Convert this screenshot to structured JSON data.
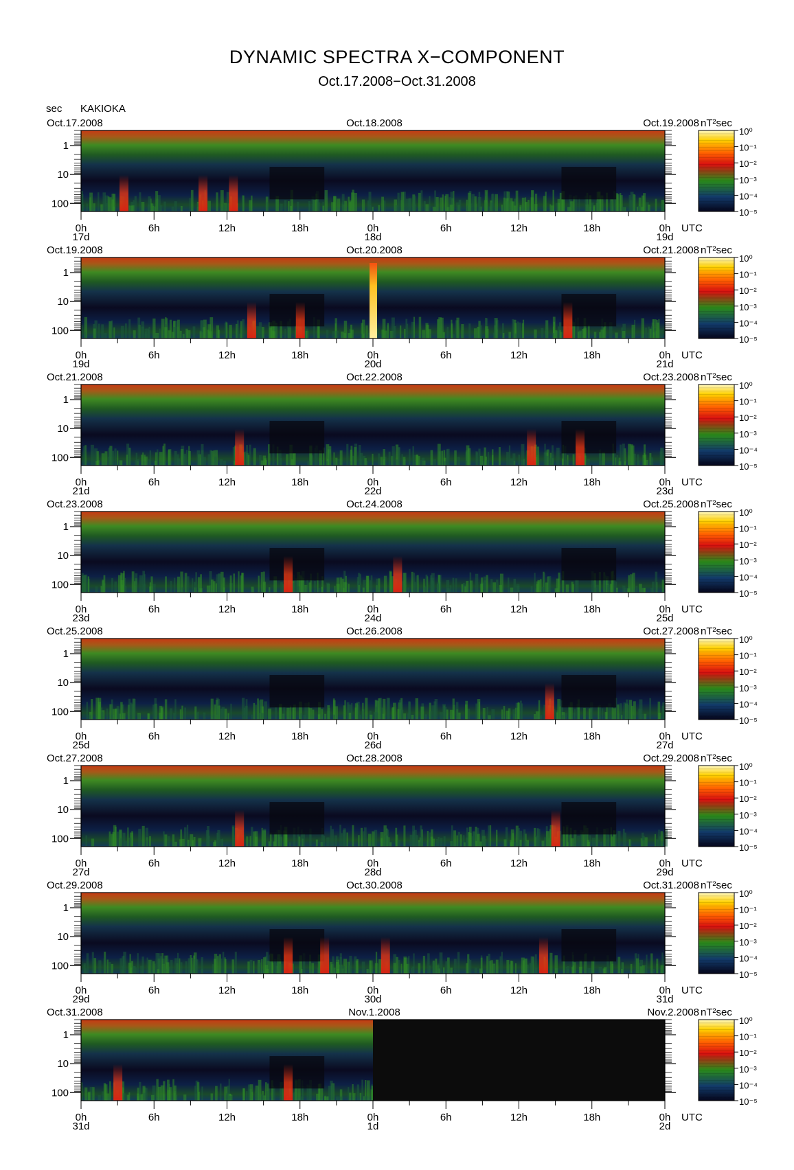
{
  "header": {
    "title": "DYNAMIC SPECTRA X−COMPONENT",
    "period": "Oct.17.2008−Oct.31.2008",
    "unit_left": "sec",
    "station": "KAKIOKA"
  },
  "chart_data": {
    "type": "heatmap",
    "title": "DYNAMIC SPECTRA X−COMPONENT",
    "subtitle": "Oct.17.2008−Oct.31.2008",
    "ylabel": "sec",
    "y_scale": "log",
    "y_ticks": [
      "1",
      "10",
      "100"
    ],
    "x_tick_labels": [
      "0h",
      "6h",
      "12h",
      "18h",
      "0h",
      "6h",
      "12h",
      "18h",
      "0h"
    ],
    "x_unit": "UTC",
    "colorbar": {
      "unit": "nT²sec",
      "scale": "log",
      "ticks": [
        "10⁰",
        "10⁻¹",
        "10⁻²",
        "10⁻³",
        "10⁻⁴",
        "10⁻⁵"
      ],
      "colors": [
        "#fff8c0",
        "#ffd000",
        "#ff6000",
        "#d81010",
        "#2a8a1a",
        "#123a6a",
        "#05051a"
      ]
    },
    "panels": [
      {
        "start": "Oct.17.2008",
        "mid": "Oct.18.2008",
        "end": "Oct.19.2008",
        "days": [
          "17d",
          "18d",
          "19d"
        ],
        "events": [
          {
            "hour": 3.5,
            "intensity": "red"
          },
          {
            "hour": 10,
            "intensity": "red"
          },
          {
            "hour": 12.5,
            "intensity": "red"
          }
        ]
      },
      {
        "start": "Oct.19.2008",
        "mid": "Oct.20.2008",
        "end": "Oct.21.2008",
        "days": [
          "19d",
          "20d",
          "21d"
        ],
        "events": [
          {
            "hour": 14,
            "intensity": "red"
          },
          {
            "hour": 18,
            "intensity": "red"
          },
          {
            "hour": 24,
            "intensity": "yellow"
          },
          {
            "hour": 40,
            "intensity": "red"
          }
        ]
      },
      {
        "start": "Oct.21.2008",
        "mid": "Oct.22.2008",
        "end": "Oct.23.2008",
        "days": [
          "21d",
          "22d",
          "23d"
        ],
        "events": [
          {
            "hour": 13,
            "intensity": "red"
          },
          {
            "hour": 37,
            "intensity": "red"
          },
          {
            "hour": 41,
            "intensity": "red"
          }
        ]
      },
      {
        "start": "Oct.23.2008",
        "mid": "Oct.24.2008",
        "end": "Oct.25.2008",
        "days": [
          "23d",
          "24d",
          "25d"
        ],
        "events": [
          {
            "hour": 17,
            "intensity": "red"
          },
          {
            "hour": 26,
            "intensity": "red"
          }
        ]
      },
      {
        "start": "Oct.25.2008",
        "mid": "Oct.26.2008",
        "end": "Oct.27.2008",
        "days": [
          "25d",
          "26d",
          "27d"
        ],
        "events": [
          {
            "hour": 38.5,
            "intensity": "red"
          }
        ]
      },
      {
        "start": "Oct.27.2008",
        "mid": "Oct.28.2008",
        "end": "Oct.29.2008",
        "days": [
          "27d",
          "28d",
          "29d"
        ],
        "events": [
          {
            "hour": 13,
            "intensity": "red"
          },
          {
            "hour": 39,
            "intensity": "red"
          }
        ]
      },
      {
        "start": "Oct.29.2008",
        "mid": "Oct.30.2008",
        "end": "Oct.31.2008",
        "days": [
          "29d",
          "30d",
          "31d"
        ],
        "events": [
          {
            "hour": 17,
            "intensity": "red"
          },
          {
            "hour": 20,
            "intensity": "red"
          },
          {
            "hour": 25,
            "intensity": "red"
          },
          {
            "hour": 38,
            "intensity": "red"
          }
        ]
      },
      {
        "start": "Oct.31.2008",
        "mid": "Nov.1.2008",
        "end": "Nov.2.2008",
        "days": [
          "31d",
          "1d",
          "2d"
        ],
        "data_until_hour": 24,
        "events": [
          {
            "hour": 3,
            "intensity": "red"
          },
          {
            "hour": 17,
            "intensity": "red"
          }
        ]
      }
    ]
  }
}
